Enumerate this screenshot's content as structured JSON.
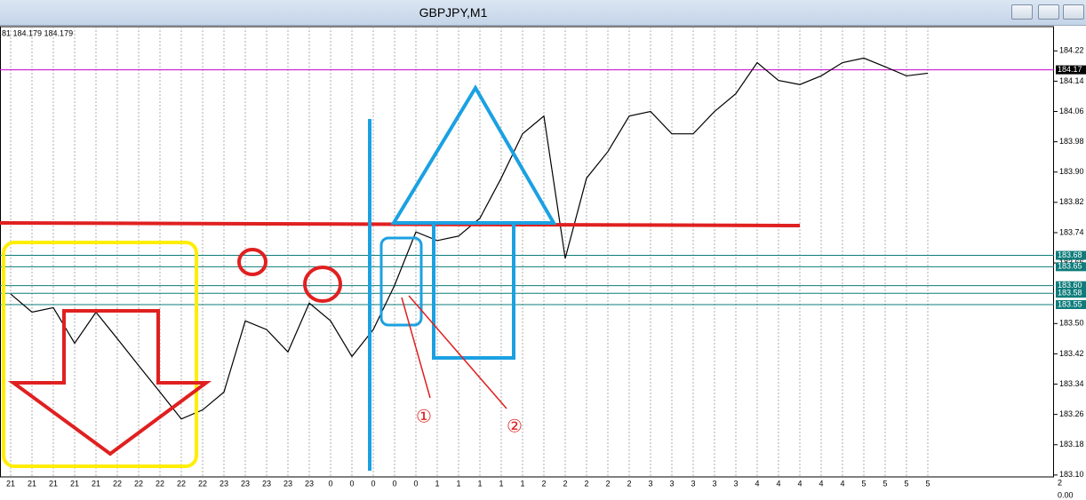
{
  "window": {
    "title": "GBPJPY,M1"
  },
  "chart_data": {
    "type": "line",
    "header": "81 184.179 184.179",
    "categories": [
      "21",
      "21",
      "21",
      "21",
      "21",
      "22",
      "22",
      "22",
      "22",
      "22",
      "23",
      "23",
      "23",
      "23",
      "23",
      "0",
      "0",
      "0",
      "0",
      "0",
      "1",
      "1",
      "1",
      "1",
      "1",
      "2",
      "2",
      "2",
      "2",
      "2",
      "3",
      "3",
      "3",
      "3",
      "3",
      "4",
      "4",
      "4",
      "4",
      "4",
      "5",
      "5",
      "5",
      "5"
    ],
    "values": [
      183.578,
      183.53,
      183.542,
      183.448,
      183.53,
      183.46,
      183.389,
      183.319,
      183.248,
      183.272,
      183.319,
      183.507,
      183.484,
      183.425,
      183.554,
      183.507,
      183.413,
      183.484,
      183.601,
      183.742,
      183.719,
      183.731,
      183.778,
      183.884,
      184.001,
      184.048,
      183.672,
      183.884,
      183.954,
      184.048,
      184.06,
      184.001,
      184.001,
      184.06,
      184.107,
      184.189,
      184.142,
      184.131,
      184.154,
      184.189,
      184.201,
      184.178,
      184.154,
      184.161
    ],
    "color": "#000000",
    "ylim": [
      183.095,
      184.284
    ],
    "yticks": [
      184.22,
      184.14,
      184.06,
      183.98,
      {
        "value": 183.9,
        "label": "183.90"
      },
      183.82,
      183.74,
      183.66,
      {
        "value": 183.5,
        "label": "183.50"
      },
      183.42,
      183.34,
      183.26,
      183.18,
      {
        "value": 183.1,
        "label": "183.10"
      }
    ],
    "current_price": {
      "value": 184.17,
      "color": "#cc00cc"
    },
    "levels": [
      183.68,
      183.65,
      {
        "value": 183.6,
        "label": "183.60"
      },
      183.58,
      183.55
    ],
    "level_color": "#0e7c7b",
    "grid": true,
    "annotations": [
      "①",
      "②"
    ],
    "sub_axis": [
      "2",
      "0.00"
    ]
  }
}
